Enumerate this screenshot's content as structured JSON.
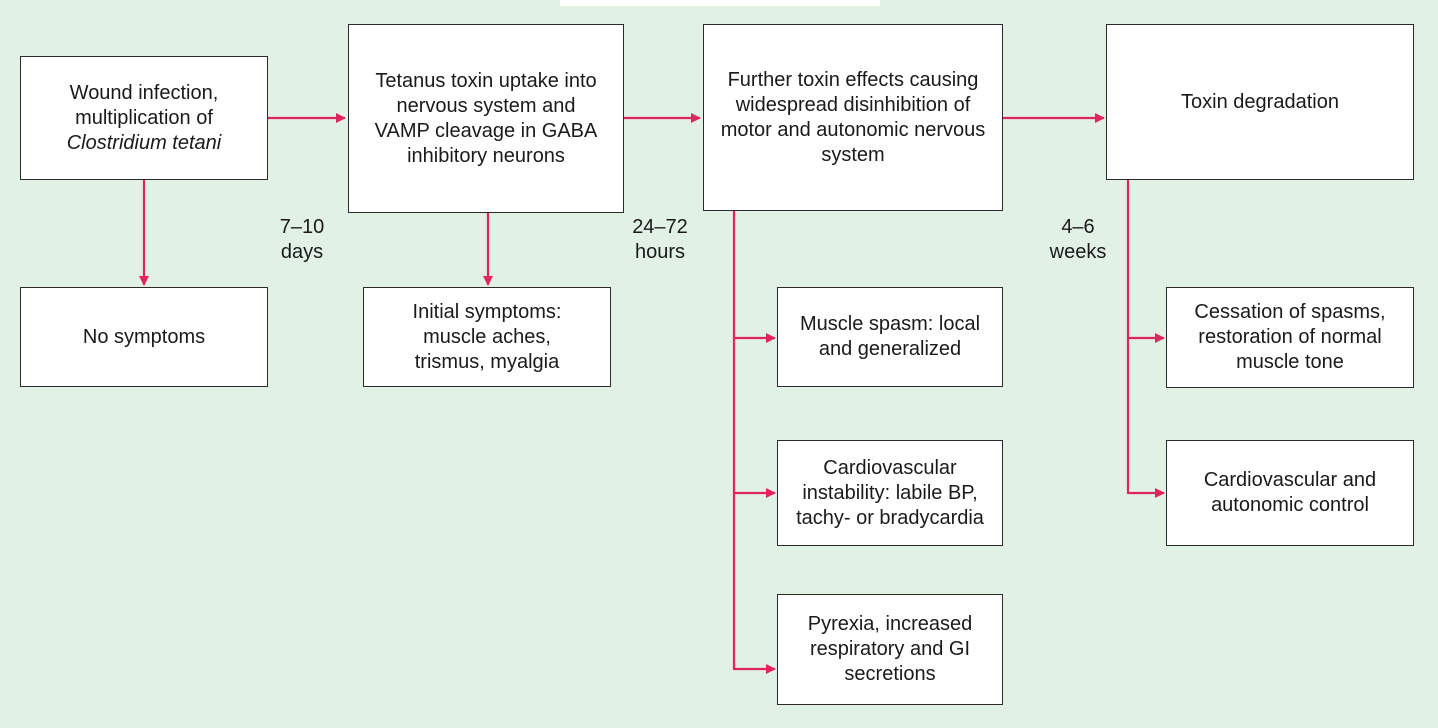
{
  "colors": {
    "background": "#e2f1e5",
    "arrow": "#e0245e",
    "box_border": "#2b2b2b"
  },
  "nodes": {
    "wound": {
      "line1": "Wound infection,",
      "line2": "multiplication of",
      "line3": "Clostridium tetani"
    },
    "uptake": {
      "text": "Tetanus toxin uptake into nervous system and VAMP cleavage in GABA inhibitory neurons"
    },
    "further": {
      "text": "Further toxin effects causing widespread disinhibition of motor and autonomic nervous system"
    },
    "degradation": {
      "text": "Toxin degradation"
    },
    "no_symptoms": {
      "text": "No symptoms"
    },
    "initial": {
      "text": "Initial symptoms: muscle aches, trismus, myalgia"
    },
    "spasm": {
      "text": "Muscle spasm: local and generalized"
    },
    "cardio": {
      "text": "Cardiovascular instability: labile BP, tachy- or bradycardia"
    },
    "pyrexia": {
      "text": "Pyrexia, increased respiratory and GI secretions"
    },
    "cessation": {
      "text": "Cessation of spasms, restoration of normal muscle tone"
    },
    "control": {
      "text": "Cardiovascular and autonomic control"
    }
  },
  "time_labels": {
    "t1": {
      "line1": "7–10",
      "line2": "days"
    },
    "t2": {
      "line1": "24–72",
      "line2": "hours"
    },
    "t3": {
      "line1": "4–6",
      "line2": "weeks"
    }
  }
}
